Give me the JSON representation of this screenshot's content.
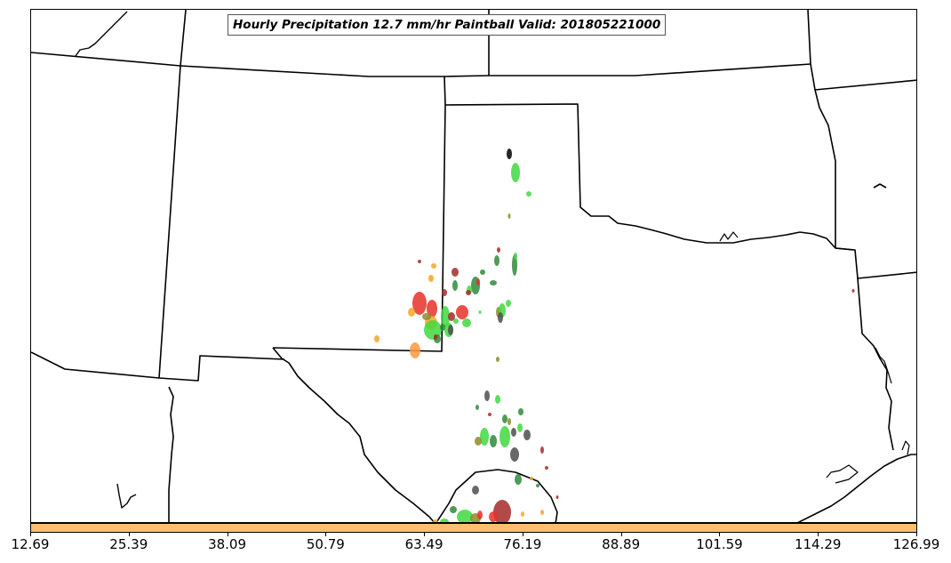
{
  "map": {
    "title": "Hourly Precipitation 12.7 mm/hr Paintball Valid: 201805221000",
    "boundary_color": "#000000",
    "region_shown": "Texas / Oklahoma / New Mexico and surrounding states"
  },
  "colorbar": {
    "fill_color": "#fdbf6f",
    "tick_labels": [
      "12.69",
      "25.39",
      "38.09",
      "50.79",
      "63.49",
      "76.19",
      "88.89",
      "101.59",
      "114.29",
      "126.99"
    ]
  },
  "paintball_colors": {
    "red": "#e8302a",
    "bright_green": "#3fd93f",
    "dark_green": "#2e8b3a",
    "orange": "#ff9a40",
    "yellow_orange": "#f5a623",
    "dark_red": "#a52a2a",
    "gray": "#4d4d4d",
    "olive": "#8b8b2a"
  }
}
